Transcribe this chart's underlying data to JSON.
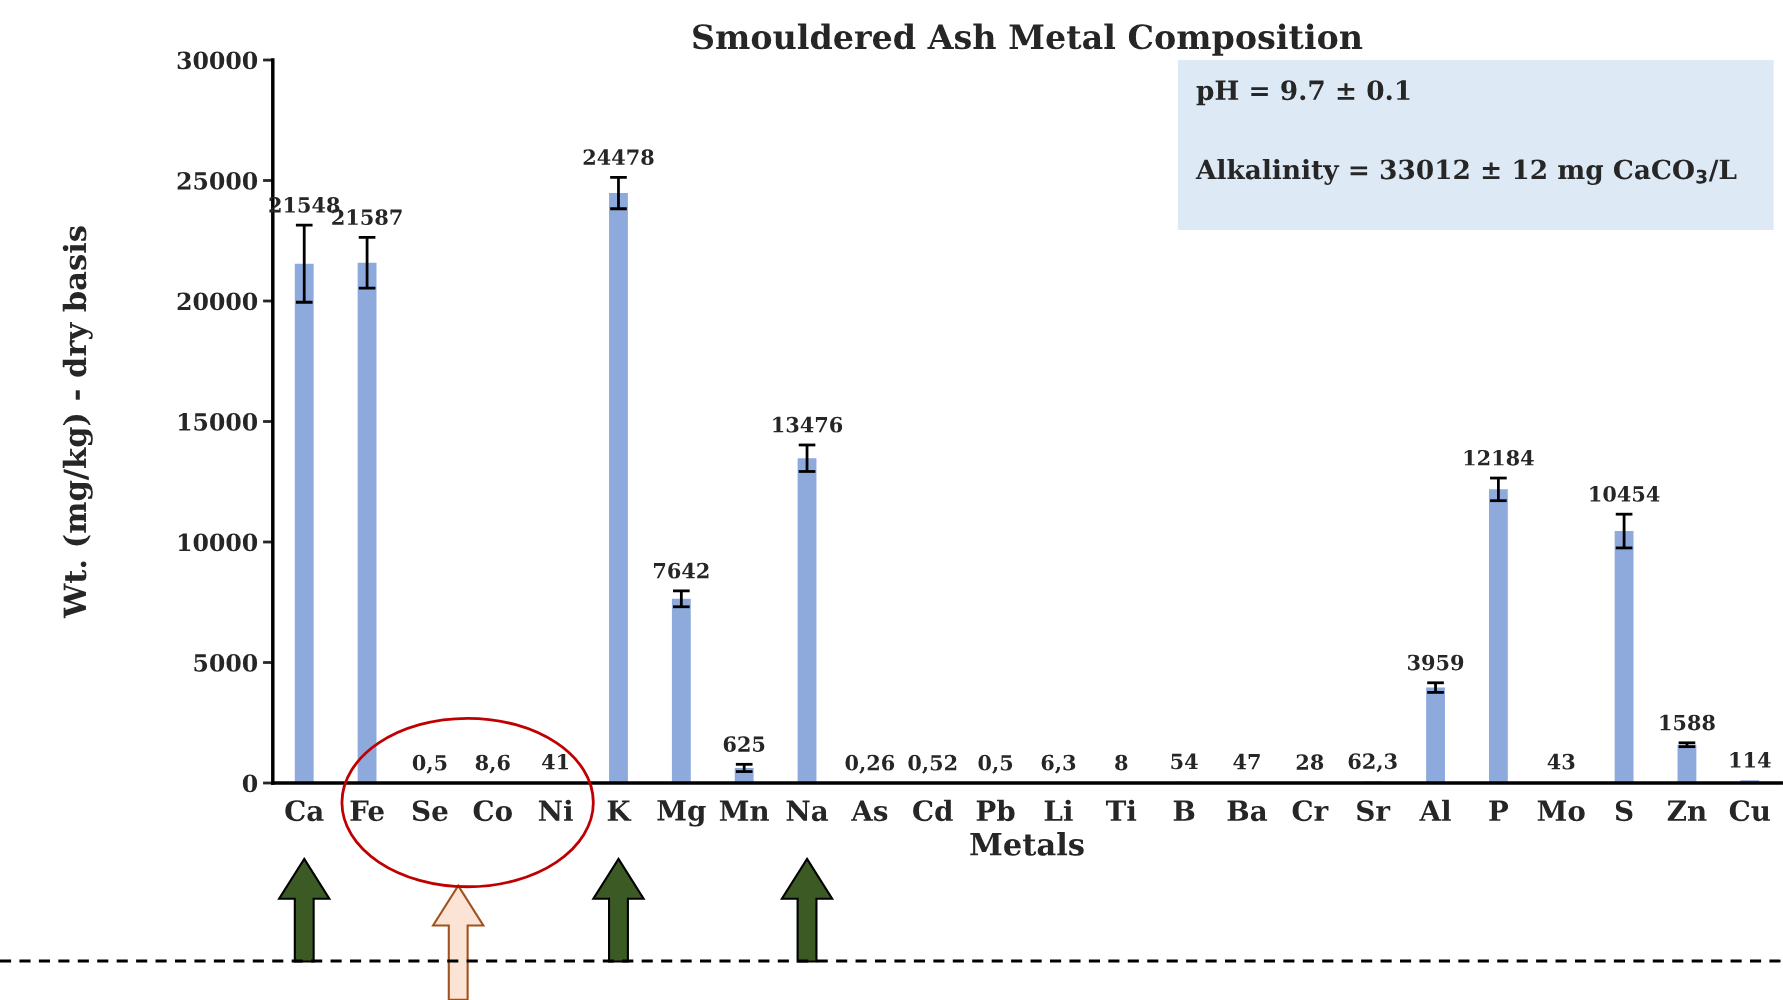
{
  "chart_data": {
    "type": "bar",
    "title": "Smouldered Ash Metal Composition",
    "xlabel": "Metals",
    "ylabel": "Wt. (mg/kg) - dry basis",
    "categories": [
      "Ca",
      "Fe",
      "Se",
      "Co",
      "Ni",
      "K",
      "Mg",
      "Mn",
      "Na",
      "As",
      "Cd",
      "Pb",
      "Li",
      "Ti",
      "B",
      "Ba",
      "Cr",
      "Sr",
      "Al",
      "P",
      "Mo",
      "S",
      "Zn",
      "Cu"
    ],
    "values": [
      21548,
      21587,
      0.5,
      8.6,
      41,
      24478,
      7642,
      625,
      13476,
      0.26,
      0.52,
      0.5,
      6.3,
      8,
      54,
      47,
      28,
      62.3,
      3959,
      12184,
      43,
      10454,
      1588,
      114
    ],
    "value_labels": [
      "21548",
      "21587",
      "0,5",
      "8,6",
      "41",
      "24478",
      "7642",
      "625",
      "13476",
      "0,26",
      "0,52",
      "0,5",
      "6,3",
      "8",
      "54",
      "47",
      "28",
      "62,3",
      "3959",
      "12184",
      "43",
      "10454",
      "1588",
      "114"
    ],
    "errors": [
      1600,
      1050,
      null,
      null,
      null,
      650,
      330,
      150,
      550,
      null,
      null,
      null,
      null,
      null,
      null,
      null,
      null,
      null,
      200,
      470,
      null,
      700,
      80,
      null
    ],
    "color": "#8eaadc",
    "ylim": [
      0,
      30000
    ],
    "yticks": [
      0,
      5000,
      10000,
      15000,
      20000,
      25000,
      30000
    ],
    "grid": false,
    "legend": false,
    "annotations": [
      "pH = 9.7 ± 0.1",
      "Alkalinity = 33012 ± 12 mg CaCO$_{3}$/L"
    ]
  }
}
